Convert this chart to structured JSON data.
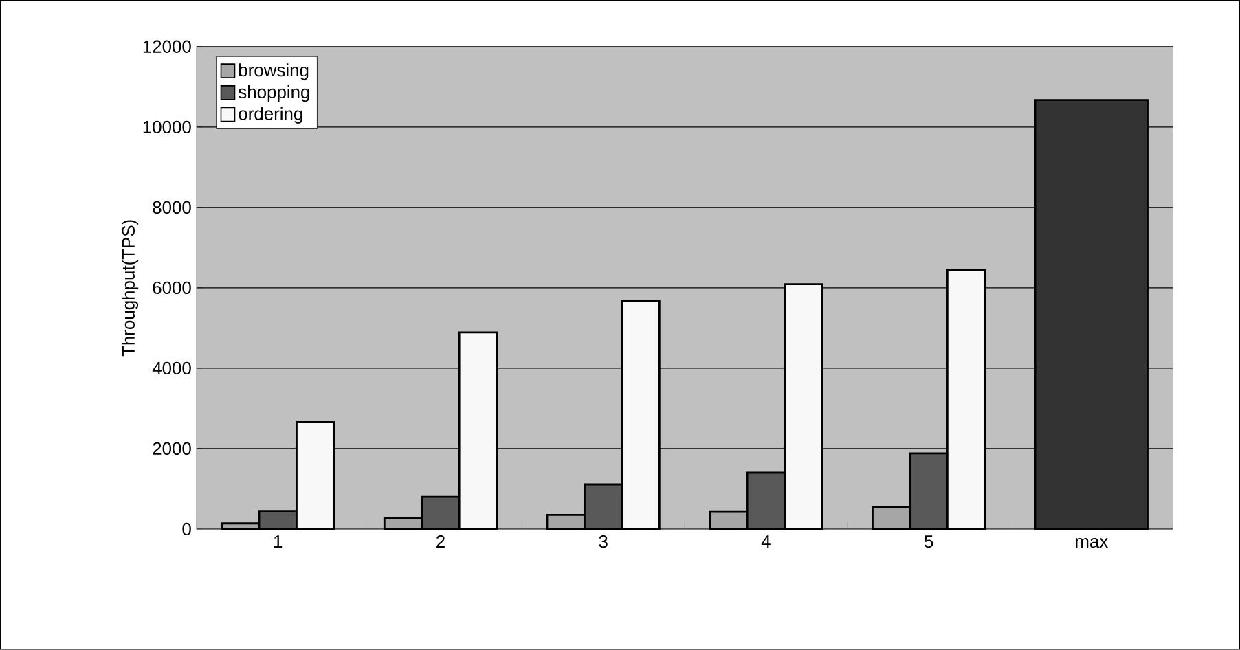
{
  "chart_data": {
    "type": "bar",
    "ylabel": "Throughput(TPS)",
    "categories": [
      "1",
      "2",
      "3",
      "4",
      "5",
      "max"
    ],
    "series": [
      {
        "name": "browsing",
        "color": "#a6a6a6",
        "values": [
          140,
          270,
          350,
          440,
          550,
          null
        ]
      },
      {
        "name": "shopping",
        "color": "#595959",
        "values": [
          450,
          800,
          1110,
          1400,
          1880,
          null
        ]
      },
      {
        "name": "ordering",
        "color": "#f8f8f8",
        "values": [
          2660,
          4890,
          5670,
          6090,
          6440,
          null
        ]
      },
      {
        "color": "#333333",
        "values": [
          null,
          null,
          null,
          null,
          null,
          10670
        ]
      }
    ],
    "ylim": [
      0,
      12000
    ],
    "yticks": [
      0,
      2000,
      4000,
      6000,
      8000,
      10000,
      12000
    ],
    "grid": "y",
    "legend": "top left"
  }
}
